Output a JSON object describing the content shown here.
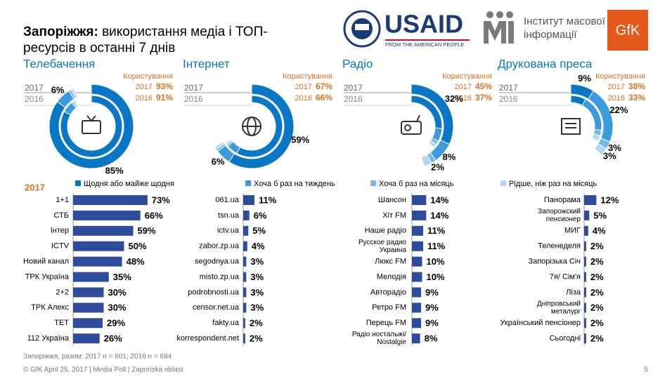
{
  "header": {
    "title_bold": "Запоріжжя:",
    "title_lines": [
      "використання медіа і ТОП-",
      "ресурсів в останні 7 днів"
    ]
  },
  "logos": {
    "usaid": "USAID",
    "usaid_tagline": "FROM THE AMERICAN PEOPLE",
    "imi": [
      "Інститут масової",
      "інформації"
    ],
    "gfk": "GfK"
  },
  "years": [
    "2017",
    "2016"
  ],
  "usage_label": "Користування",
  "legend": [
    {
      "name": "Щодня або майже щодня",
      "color": "#0a76c6"
    },
    {
      "name": "Хоча б раз на тиждень",
      "color": "#3c9bdc"
    },
    {
      "name": "Хоча б раз на місяць",
      "color": "#74b7e8"
    },
    {
      "name": "Рідше, ніж раз на місяць",
      "color": "#b4d6f2"
    }
  ],
  "list_year": "2017",
  "bar_color": "#2d4c9c",
  "panels": [
    {
      "title": "Телебачення",
      "usage": [
        93,
        91
      ],
      "usage_labels": [
        "93%",
        "91%"
      ],
      "rings": [
        {
          "values": [
            85,
            6,
            1,
            1
          ],
          "value_labels": [
            "85%",
            "6%",
            null,
            null
          ]
        },
        {
          "values": [
            83,
            6,
            1,
            1
          ]
        }
      ],
      "items": [
        {
          "label": [
            "1+1"
          ],
          "value": 73,
          "value_label": "73%"
        },
        {
          "label": [
            "СТБ"
          ],
          "value": 66,
          "value_label": "66%"
        },
        {
          "label": [
            "Інтер"
          ],
          "value": 59,
          "value_label": "59%"
        },
        {
          "label": [
            "ICTV"
          ],
          "value": 50,
          "value_label": "50%"
        },
        {
          "label": [
            "Новий канал"
          ],
          "value": 48,
          "value_label": "48%"
        },
        {
          "label": [
            "ТРК Україна"
          ],
          "value": 35,
          "value_label": "35%"
        },
        {
          "label": [
            "2+2"
          ],
          "value": 30,
          "value_label": "30%"
        },
        {
          "label": [
            "ТРК Алекс"
          ],
          "value": 30,
          "value_label": "30%"
        },
        {
          "label": [
            "ТЕТ"
          ],
          "value": 29,
          "value_label": "29%"
        },
        {
          "label": [
            "112 Україна"
          ],
          "value": 26,
          "value_label": "26%"
        }
      ]
    },
    {
      "title": "Інтернет",
      "usage": [
        67,
        66
      ],
      "usage_labels": [
        "67%",
        "66%"
      ],
      "rings": [
        {
          "values": [
            59,
            6,
            1,
            1
          ],
          "value_labels": [
            "59%",
            "6%",
            null,
            null
          ]
        },
        {
          "values": [
            58,
            6,
            1,
            1
          ]
        }
      ],
      "items": [
        {
          "label": [
            "061.ua"
          ],
          "value": 11,
          "value_label": "11%"
        },
        {
          "label": [
            "tsn.ua"
          ],
          "value": 6,
          "value_label": "6%"
        },
        {
          "label": [
            "ictv.ua"
          ],
          "value": 5,
          "value_label": "5%"
        },
        {
          "label": [
            "zabor.zp.ua"
          ],
          "value": 4,
          "value_label": "4%"
        },
        {
          "label": [
            "segodnya.ua"
          ],
          "value": 3,
          "value_label": "3%"
        },
        {
          "label": [
            "misto.zp.ua"
          ],
          "value": 3,
          "value_label": "3%"
        },
        {
          "label": [
            "podrobnosti.ua"
          ],
          "value": 3,
          "value_label": "3%"
        },
        {
          "label": [
            "censor.net.ua"
          ],
          "value": 3,
          "value_label": "3%"
        },
        {
          "label": [
            "fakty.ua"
          ],
          "value": 2,
          "value_label": "2%"
        },
        {
          "label": [
            "korrespondent.net"
          ],
          "value": 2,
          "value_label": "2%"
        }
      ]
    },
    {
      "title": "Радіо",
      "usage": [
        45,
        37
      ],
      "usage_labels": [
        "45%",
        "37%"
      ],
      "rings": [
        {
          "values": [
            32,
            8,
            2,
            3
          ],
          "value_labels": [
            "32%",
            "8%",
            "2%",
            null
          ]
        },
        {
          "values": [
            26,
            7,
            2,
            2
          ]
        }
      ],
      "items": [
        {
          "label": [
            "Шансон"
          ],
          "value": 14,
          "value_label": "14%"
        },
        {
          "label": [
            "Хіт FM"
          ],
          "value": 14,
          "value_label": "14%"
        },
        {
          "label": [
            "Наше радіо"
          ],
          "value": 11,
          "value_label": "11%"
        },
        {
          "label": [
            "Русское радио",
            "Украина"
          ],
          "value": 11,
          "value_label": "11%"
        },
        {
          "label": [
            "Люкс FM"
          ],
          "value": 10,
          "value_label": "10%"
        },
        {
          "label": [
            "Мелодія"
          ],
          "value": 10,
          "value_label": "10%"
        },
        {
          "label": [
            "Авторадіо"
          ],
          "value": 9,
          "value_label": "9%"
        },
        {
          "label": [
            "Ретро FM"
          ],
          "value": 9,
          "value_label": "9%"
        },
        {
          "label": [
            "Перець FM"
          ],
          "value": 9,
          "value_label": "9%"
        },
        {
          "label": [
            "Радіо ностальжі/",
            "Nostalgie"
          ],
          "value": 8,
          "value_label": "8%"
        }
      ]
    },
    {
      "title": "Друкована преса",
      "usage": [
        38,
        33
      ],
      "usage_labels": [
        "38%",
        "33%"
      ],
      "rings": [
        {
          "values": [
            9,
            22,
            3,
            3
          ],
          "value_labels": [
            "9%",
            "22%",
            "3%",
            "3%"
          ]
        },
        {
          "values": [
            8,
            19,
            3,
            3
          ]
        }
      ],
      "items": [
        {
          "label": [
            "Панорама"
          ],
          "value": 12,
          "value_label": "12%"
        },
        {
          "label": [
            "Запорожский",
            "пенсионер"
          ],
          "value": 5,
          "value_label": "5%"
        },
        {
          "label": [
            "МИГ"
          ],
          "value": 4,
          "value_label": "4%"
        },
        {
          "label": [
            "Теленеделя"
          ],
          "value": 2,
          "value_label": "2%"
        },
        {
          "label": [
            "Запорізька Січ"
          ],
          "value": 2,
          "value_label": "2%"
        },
        {
          "label": [
            "7я/ Сім'я"
          ],
          "value": 2,
          "value_label": "2%"
        },
        {
          "label": [
            "Ліза"
          ],
          "value": 2,
          "value_label": "2%"
        },
        {
          "label": [
            "Дніпровський",
            "металург"
          ],
          "value": 2,
          "value_label": "2%"
        },
        {
          "label": [
            "Український пенсіонер"
          ],
          "value": 2,
          "value_label": "2%"
        },
        {
          "label": [
            "Сьогодні"
          ],
          "value": 2,
          "value_label": "2%"
        }
      ]
    }
  ],
  "footnote": "Запоріжжя, разом: 2017 n = 601; 2016 n = 684",
  "footer": "© GfK April 25, 2017 | Media Poll | Zaporizka oblast",
  "page_number": "5"
}
